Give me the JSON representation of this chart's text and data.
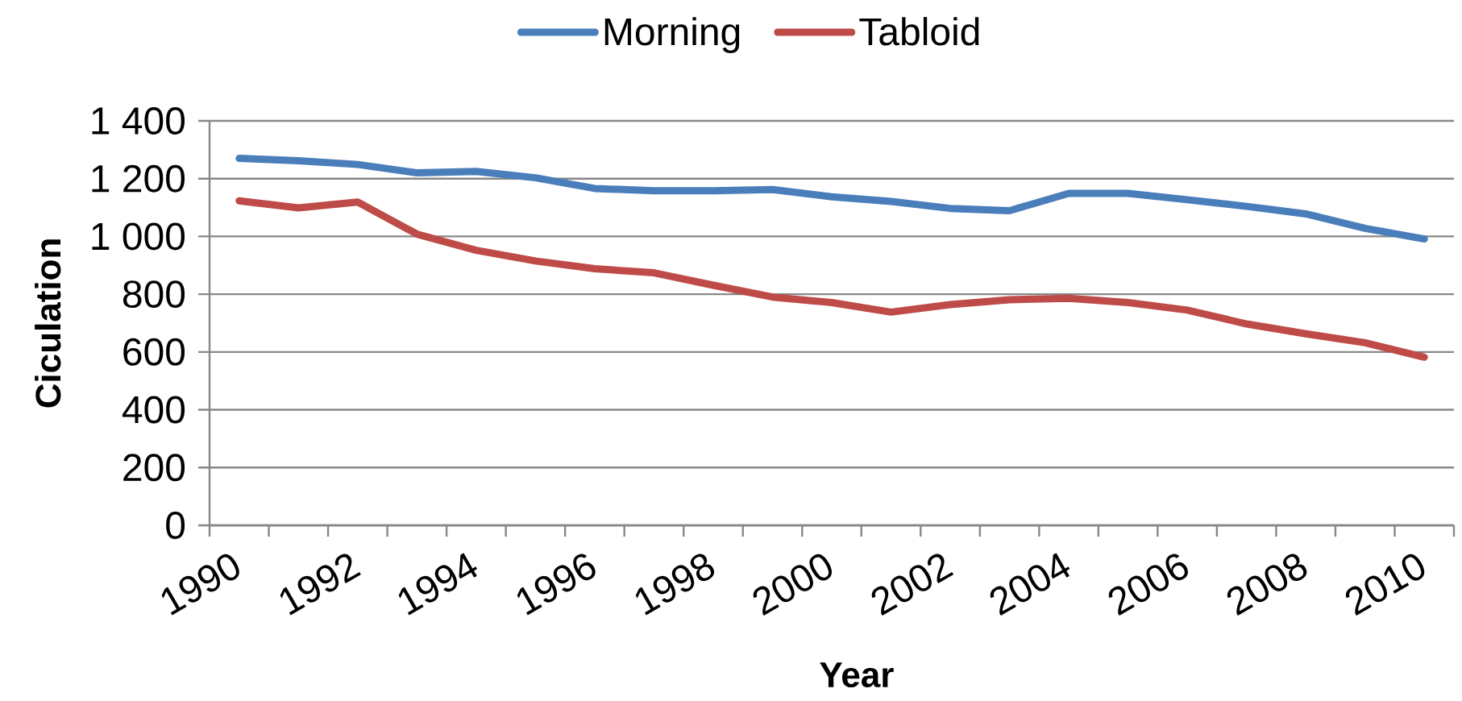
{
  "chart_data": {
    "type": "line",
    "xlabel": "Year",
    "ylabel": "Ciculation",
    "categories": [
      "1990",
      null,
      "1992",
      null,
      "1994",
      null,
      "1996",
      null,
      "1998",
      null,
      "2000",
      null,
      "2002",
      null,
      "2004",
      null,
      "2006",
      null,
      "2008",
      null,
      "2010"
    ],
    "series": [
      {
        "name": "Morning",
        "color": "#4a7ebb",
        "values": [
          1270,
          1262,
          1249,
          1220,
          1225,
          1203,
          1166,
          1158,
          1158,
          1162,
          1137,
          1121,
          1097,
          1089,
          1149,
          1149,
          1127,
          1104,
          1078,
          1028,
          991
        ]
      },
      {
        "name": "Tabloid",
        "color": "#be4b48",
        "values": [
          1123,
          1099,
          1119,
          1008,
          952,
          915,
          888,
          874,
          831,
          790,
          771,
          738,
          764,
          781,
          786,
          771,
          745,
          697,
          663,
          632,
          582
        ]
      }
    ],
    "ylim": [
      0,
      1400
    ],
    "yticks": [
      0,
      200,
      400,
      600,
      800,
      {
        "value": 1000,
        "label": "1 000"
      },
      {
        "value": 1200,
        "label": "1 200"
      },
      {
        "value": 1400,
        "label": "1 400"
      }
    ],
    "grid": "y",
    "legend": "top"
  }
}
